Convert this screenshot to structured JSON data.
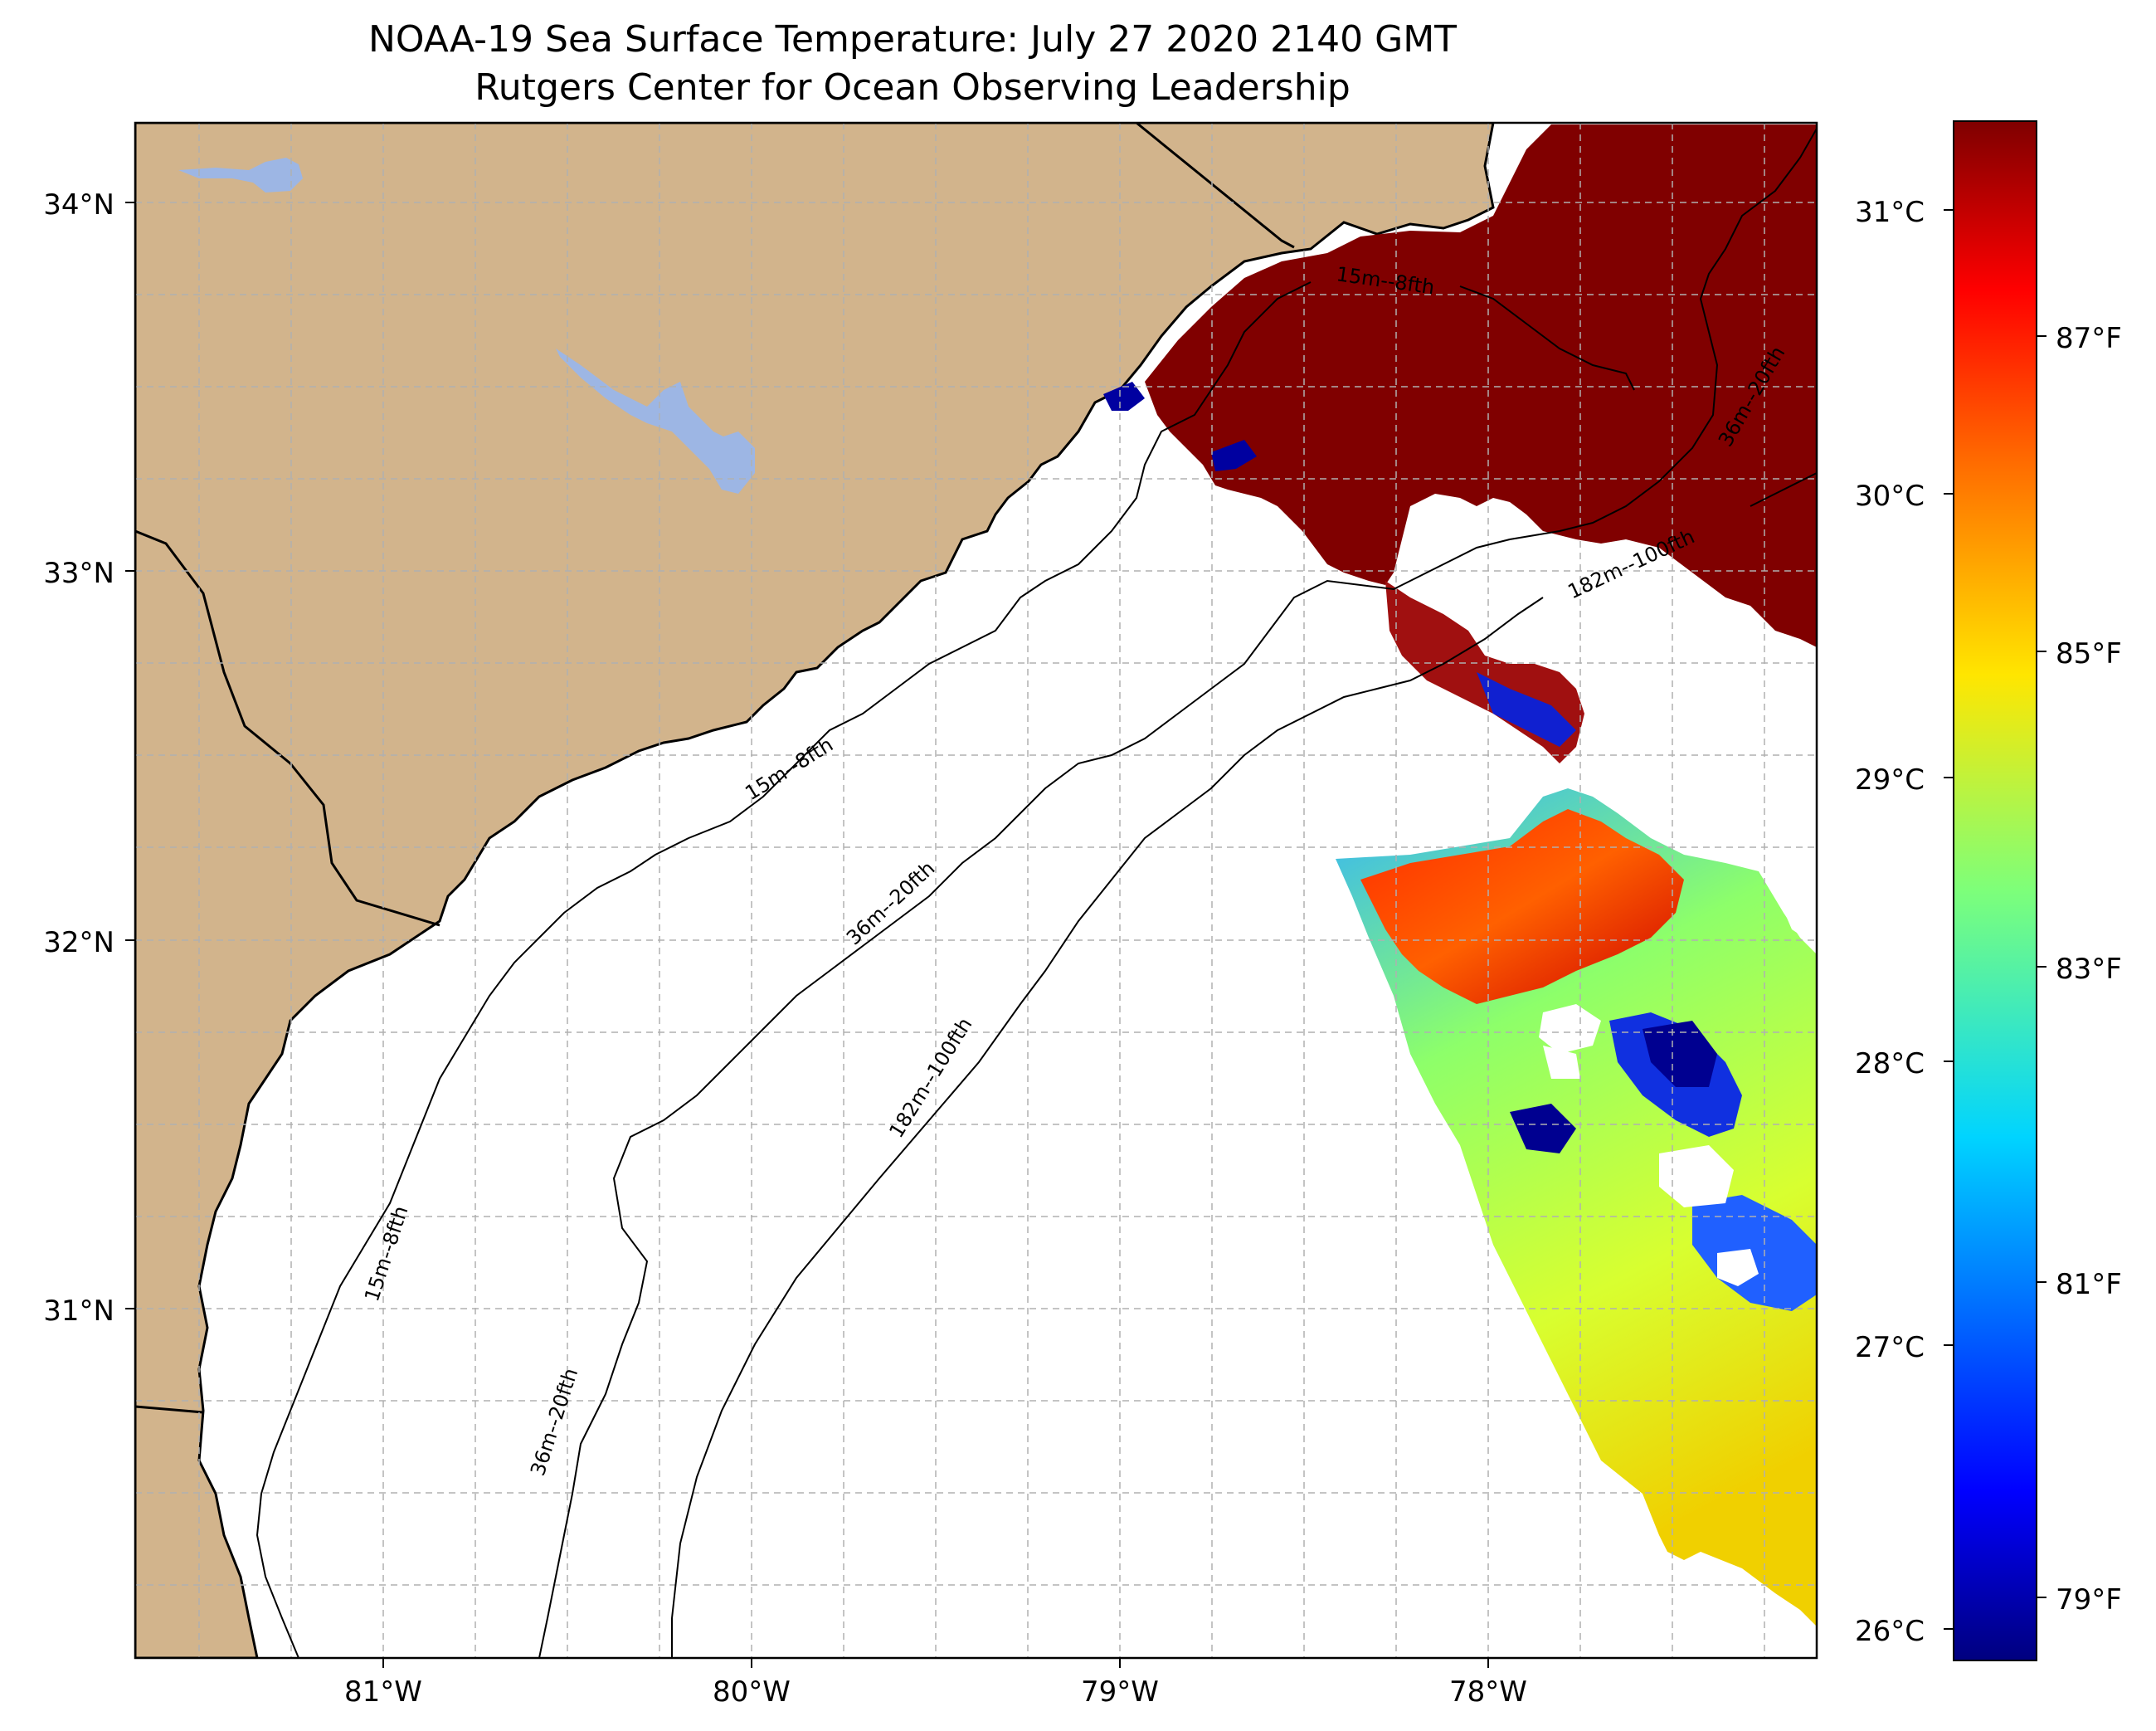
{
  "title_line1": "NOAA-19 Sea Surface Temperature: July 27 2020 2140 GMT",
  "title_line2": "Rutgers Center for Ocean Observing Leadership",
  "lat_labels": [
    "34°N",
    "33°N",
    "32°N",
    "31°N"
  ],
  "lon_labels": [
    "81°W",
    "80°W",
    "79°W",
    "78°W"
  ],
  "isobath_labels": {
    "iso15": "15m--8fth",
    "iso36": "36m--20fth",
    "iso182": "182m--100fth"
  },
  "colorbar": {
    "celsius_labels": [
      "31°C",
      "30°C",
      "29°C",
      "28°C",
      "27°C",
      "26°C"
    ],
    "fahrenheit_labels": [
      "87°F",
      "85°F",
      "83°F",
      "81°F",
      "79°F"
    ],
    "colormap": "jet"
  },
  "colors": {
    "land": "#d2b48c",
    "lake": "#9db6e4",
    "ocean_nodata": "#ffffff",
    "sst_hot": "#800000",
    "gridline": "#b0b0b0"
  }
}
